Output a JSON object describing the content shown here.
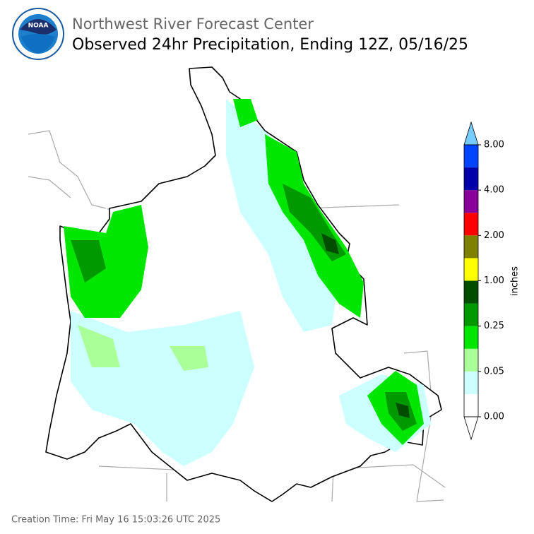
{
  "header": {
    "org": "Northwest River Forecast Center",
    "title": "Observed 24hr Precipitation, Ending 12Z, 05/16/25",
    "logo": "NOAA"
  },
  "colorbar": {
    "label": "inches",
    "ticks": [
      "0.00",
      "0.05",
      "0.25",
      "1.00",
      "2.00",
      "4.00",
      "8.00"
    ],
    "colors": [
      "#ffffff",
      "#ccffff",
      "#aaff99",
      "#00e600",
      "#009900",
      "#004d00",
      "#ffff00",
      "#808000",
      "#ff0000",
      "#880099",
      "#0000aa",
      "#0044ff"
    ],
    "over_color": "#77ccff",
    "under_color": "#ffffff"
  },
  "footer": {
    "creation_time": "Creation Time: Fri May 16 15:03:26 UTC 2025"
  }
}
